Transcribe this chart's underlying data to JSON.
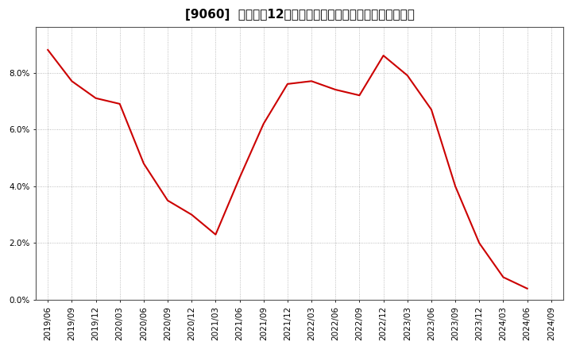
{
  "title": "[9060]  売上高の12か月移動合計の対前年同期増減率の推移",
  "line_color": "#cc0000",
  "background_color": "#ffffff",
  "plot_bg_color": "#ffffff",
  "grid_color": "#aaaaaa",
  "ylim": [
    0.0,
    0.096
  ],
  "yticks": [
    0.0,
    0.02,
    0.04,
    0.06,
    0.08
  ],
  "x_labels": [
    "2019/06",
    "2019/09",
    "2019/12",
    "2020/03",
    "2020/06",
    "2020/09",
    "2020/12",
    "2021/03",
    "2021/06",
    "2021/09",
    "2021/12",
    "2022/03",
    "2022/06",
    "2022/09",
    "2022/12",
    "2023/03",
    "2023/06",
    "2023/09",
    "2023/12",
    "2024/03",
    "2024/06",
    "2024/09"
  ],
  "values": [
    0.088,
    0.077,
    0.071,
    0.069,
    0.048,
    0.035,
    0.03,
    0.023,
    0.043,
    0.062,
    0.076,
    0.077,
    0.074,
    0.072,
    0.086,
    0.079,
    0.067,
    0.04,
    0.02,
    0.008,
    0.004,
    null
  ],
  "title_fontsize": 11,
  "tick_fontsize": 7.5,
  "linewidth": 1.5
}
